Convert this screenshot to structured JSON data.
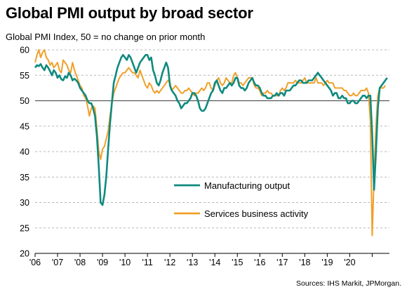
{
  "chart_data": {
    "type": "line",
    "title": "Global PMI output by broad sector",
    "subtitle": "Global  PMI Index, 50 = no change on prior month",
    "source": "Sources: IHS Markit, JPMorgan.",
    "xlabel": "",
    "ylabel": "",
    "ylim": [
      20,
      60
    ],
    "y_ticks": [
      "20",
      "25",
      "30",
      "35",
      "40",
      "45",
      "50",
      "55",
      "60"
    ],
    "x_ticks": [
      "'06",
      "'07",
      "'08",
      "'09",
      "'10",
      "'11",
      "'12",
      "'13",
      "'14",
      "'15",
      "'16",
      "'17",
      "'18",
      "'19",
      "'20"
    ],
    "x_start": "2006-01",
    "x_end": "2020-10",
    "grid": true,
    "reference_line": 50,
    "legend_position": "center",
    "series": [
      {
        "name": "Manufacturing output",
        "color": "#0f8a7e",
        "values": [
          56.5,
          57.0,
          56.8,
          57.2,
          56.5,
          56.0,
          57.0,
          56.5,
          55.8,
          55.0,
          56.0,
          55.5,
          54.5,
          55.0,
          54.2,
          54.0,
          54.8,
          54.5,
          55.5,
          55.0,
          54.0,
          54.3,
          54.0,
          53.5,
          52.5,
          52.0,
          51.5,
          51.0,
          50.0,
          49.5,
          49.5,
          48.5,
          47.0,
          43.0,
          37.0,
          30.0,
          29.5,
          31.5,
          35.0,
          40.5,
          45.5,
          49.5,
          53.5,
          55.0,
          56.5,
          57.5,
          58.5,
          59.0,
          58.5,
          58.0,
          59.0,
          58.5,
          57.5,
          56.5,
          55.5,
          56.5,
          57.5,
          58.0,
          58.5,
          59.0,
          59.0,
          58.0,
          58.5,
          56.0,
          55.0,
          53.5,
          53.0,
          54.0,
          55.5,
          56.5,
          57.5,
          56.5,
          53.0,
          52.0,
          51.5,
          51.0,
          50.0,
          49.5,
          48.5,
          49.0,
          49.5,
          49.5,
          50.0,
          50.5,
          51.5,
          51.5,
          51.0,
          50.0,
          48.5,
          48.0,
          48.0,
          48.5,
          49.5,
          50.5,
          51.5,
          52.0,
          53.5,
          54.0,
          53.0,
          52.0,
          51.5,
          52.5,
          52.5,
          53.0,
          53.5,
          53.0,
          53.5,
          54.5,
          54.5,
          53.0,
          52.5,
          52.5,
          52.0,
          52.5,
          53.5,
          54.0,
          54.5,
          53.5,
          53.0,
          53.0,
          52.5,
          51.5,
          51.0,
          51.0,
          50.5,
          50.5,
          50.5,
          51.0,
          51.0,
          51.5,
          51.0,
          51.5,
          51.5,
          51.0,
          52.0,
          52.0,
          52.0,
          52.5,
          53.0,
          53.0,
          53.5,
          54.0,
          54.0,
          53.5,
          53.5,
          53.5,
          54.0,
          54.0,
          54.0,
          54.5,
          55.0,
          55.5,
          55.0,
          54.5,
          54.0,
          53.5,
          53.0,
          52.5,
          52.0,
          51.0,
          51.5,
          51.5,
          50.5,
          50.5,
          51.0,
          50.5,
          50.5,
          49.5,
          49.5,
          50.0,
          50.0,
          49.5,
          49.5,
          50.0,
          50.5,
          51.0,
          51.0,
          50.5,
          51.0,
          51.0,
          43.5,
          32.5,
          40.0,
          48.5,
          52.5,
          53.0,
          53.5,
          54.0,
          54.5
        ]
      },
      {
        "name": "Services business activity",
        "color": "#f0a02a",
        "values": [
          57.5,
          59.0,
          60.0,
          58.5,
          59.5,
          60.0,
          58.5,
          58.0,
          57.0,
          57.5,
          56.5,
          57.0,
          57.5,
          56.0,
          55.5,
          58.0,
          57.5,
          57.0,
          56.0,
          55.5,
          57.5,
          56.0,
          55.0,
          54.0,
          53.0,
          52.5,
          51.0,
          50.5,
          49.0,
          47.0,
          48.5,
          49.0,
          48.5,
          44.5,
          40.0,
          38.5,
          40.5,
          41.0,
          42.5,
          44.0,
          47.0,
          49.5,
          51.5,
          52.5,
          53.5,
          54.5,
          55.0,
          55.5,
          55.5,
          56.0,
          56.5,
          56.0,
          55.5,
          55.5,
          55.0,
          54.5,
          56.0,
          55.0,
          54.0,
          53.0,
          52.5,
          53.5,
          53.0,
          52.0,
          51.5,
          52.0,
          51.5,
          52.0,
          52.5,
          53.0,
          53.5,
          54.0,
          53.5,
          52.0,
          52.5,
          53.0,
          52.5,
          52.0,
          51.5,
          51.5,
          52.0,
          52.0,
          52.5,
          52.0,
          51.5,
          51.0,
          51.5,
          51.5,
          52.0,
          52.5,
          52.0,
          52.5,
          53.5,
          53.5,
          52.5,
          52.0,
          53.0,
          54.0,
          54.5,
          53.5,
          53.0,
          53.5,
          54.5,
          54.0,
          53.5,
          53.5,
          55.0,
          55.5,
          54.5,
          53.5,
          53.5,
          53.0,
          53.5,
          54.0,
          54.5,
          54.5,
          54.5,
          53.0,
          52.5,
          52.5,
          52.0,
          51.0,
          51.5,
          51.5,
          52.0,
          51.5,
          51.5,
          51.0,
          51.0,
          51.0,
          51.0,
          52.0,
          52.5,
          52.0,
          52.5,
          53.5,
          53.5,
          53.5,
          53.5,
          54.0,
          53.5,
          53.5,
          53.5,
          54.0,
          54.5,
          53.5,
          53.5,
          53.5,
          53.5,
          53.5,
          54.5,
          53.5,
          53.5,
          53.5,
          53.0,
          53.5,
          54.0,
          53.5,
          53.5,
          53.5,
          52.5,
          52.5,
          52.5,
          52.5,
          52.5,
          52.0,
          52.0,
          51.5,
          51.0,
          51.0,
          51.5,
          51.0,
          51.0,
          51.5,
          52.0,
          52.0,
          52.0,
          52.5,
          51.5,
          46.0,
          23.5,
          35.0,
          45.0,
          51.0,
          52.5,
          52.5,
          52.5,
          53.0
        ]
      }
    ]
  }
}
